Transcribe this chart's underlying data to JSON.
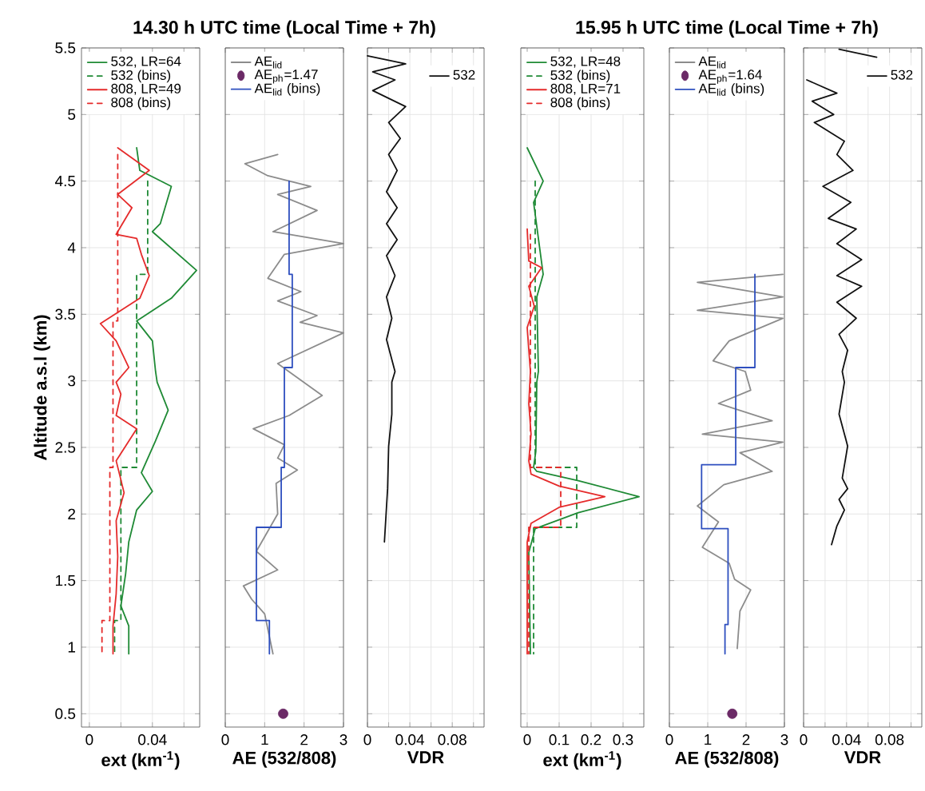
{
  "chart_data": [
    {
      "type": "line",
      "xlabel": "ext (km$^{-1}$)",
      "ylabel": "Altitude a.s.l (km)",
      "xlim": [
        -0.005,
        0.07
      ],
      "xticks": [
        0,
        {
          "value": 0.02,
          "label": null
        },
        0.04,
        {
          "value": 0.06,
          "label": null
        }
      ],
      "ylim": [
        0.4,
        5.5
      ],
      "yticks": [
        0.5,
        1,
        1.5,
        2,
        2.5,
        3,
        3.5,
        4,
        4.5,
        5,
        5.5
      ],
      "grid": true,
      "legend": "top left",
      "series": [
        {
          "name": "532, LR=64",
          "color": "#1f8a35",
          "line_style": "solid",
          "x": [
            0.03,
            0.032,
            0.052,
            0.045,
            0.04,
            0.068,
            0.052,
            0.03,
            0.04,
            0.042,
            0.043,
            0.05,
            0.042,
            0.033,
            0.04,
            0.03,
            0.025,
            0.023,
            0.02,
            0.025,
            0.025
          ],
          "values": [
            4.75,
            4.58,
            4.46,
            4.18,
            4.12,
            3.83,
            3.62,
            3.45,
            3.3,
            3.07,
            2.99,
            2.78,
            2.55,
            2.31,
            2.17,
            2.03,
            1.79,
            1.55,
            1.31,
            1.16,
            0.95
          ]
        },
        {
          "name": "532 (bins)",
          "color": "#1f8a35",
          "line_style": "dashed",
          "x": [
            0.037,
            0.037,
            0.03,
            0.03,
            0.02,
            0.02,
            0.016,
            0.016
          ],
          "values": [
            4.5,
            3.8,
            3.8,
            2.35,
            2.35,
            1.2,
            1.2,
            0.95
          ]
        },
        {
          "name": "808, LR=49",
          "color": "#e52b2b",
          "line_style": "solid",
          "x": [
            0.018,
            0.038,
            0.018,
            0.027,
            0.017,
            0.03,
            0.033,
            0.038,
            0.032,
            0.007,
            0.017,
            0.025,
            0.017,
            0.02,
            0.017,
            0.03,
            0.017,
            0.022,
            0.017,
            0.018,
            0.017,
            0.015,
            0.015
          ],
          "values": [
            4.75,
            4.58,
            4.4,
            4.3,
            4.1,
            4.07,
            3.95,
            3.79,
            3.62,
            3.43,
            3.3,
            3.1,
            2.99,
            2.9,
            2.74,
            2.64,
            2.4,
            2.16,
            1.95,
            1.68,
            1.4,
            1.16,
            0.95
          ]
        },
        {
          "name": "808 (bins)",
          "color": "#e52b2b",
          "line_style": "dashed",
          "x": [
            0.018,
            0.018,
            0.015,
            0.015,
            0.013,
            0.013,
            0.008,
            0.008
          ],
          "values": [
            4.7,
            3.45,
            3.45,
            2.35,
            2.35,
            1.2,
            1.2,
            0.95
          ]
        }
      ]
    },
    {
      "type": "line",
      "title": "14.30 h UTC time (Local Time + 7h)",
      "xlabel": "AE (532/808)",
      "xlim": [
        0,
        3
      ],
      "xticks": [
        0,
        1,
        2,
        3
      ],
      "ylim": [
        0.4,
        5.5
      ],
      "yticks": [
        0.5,
        1,
        1.5,
        2,
        2.5,
        3,
        3.5,
        4,
        4.5,
        5,
        5.5
      ],
      "tick_labels": "x",
      "grid": true,
      "legend": "top left",
      "series": [
        {
          "name": "AE$_{lid}$",
          "color": "#8c8c8c",
          "line_style": "solid",
          "x": [
            1.33,
            0.5,
            1.08,
            2.17,
            1.33,
            2.33,
            1.21,
            3.0,
            1.5,
            1.08,
            1.92,
            1.33,
            2.33,
            1.9,
            3.0,
            1.33,
            2.46,
            1.62,
            0.71,
            1.5,
            1.33,
            1.83,
            1.29,
            1.33,
            0.79,
            1.33,
            0.46,
            0.67,
            1.0,
            1.21
          ],
          "values": [
            4.7,
            4.63,
            4.54,
            4.46,
            4.4,
            4.28,
            4.12,
            4.03,
            3.95,
            3.77,
            3.67,
            3.6,
            3.49,
            3.44,
            3.36,
            3.13,
            2.89,
            2.74,
            2.64,
            2.52,
            2.42,
            2.33,
            2.23,
            2.0,
            1.72,
            1.58,
            1.46,
            1.36,
            1.25,
            0.95
          ]
        },
        {
          "name": "AE$_{ph}$=1.47",
          "type": "scatter",
          "marker": "circle",
          "color": "#6b2a66",
          "x": [
            1.47
          ],
          "values": [
            0.5
          ]
        },
        {
          "name": "AE$_{lid}$ (bins)",
          "color": "#2e4fbf",
          "line_style": "solid",
          "x": [
            1.62,
            1.62,
            1.7,
            1.7,
            1.5,
            1.5,
            1.42,
            1.42,
            0.79,
            0.79,
            1.12,
            1.12
          ],
          "values": [
            4.5,
            3.8,
            3.8,
            3.1,
            3.1,
            2.35,
            2.35,
            1.9,
            1.9,
            1.2,
            1.2,
            0.95
          ]
        }
      ]
    },
    {
      "type": "line",
      "xlabel": "VDR",
      "xlim": [
        0,
        0.11
      ],
      "xticks": [
        0,
        {
          "value": 0.02,
          "label": null
        },
        0.04,
        {
          "value": 0.06,
          "label": null
        },
        0.08,
        {
          "value": 0.1,
          "label": null
        }
      ],
      "ylim": [
        0.4,
        5.5
      ],
      "yticks": [
        0.5,
        1,
        1.5,
        2,
        2.5,
        3,
        3.5,
        4,
        4.5,
        5,
        5.5
      ],
      "tick_labels": "x",
      "grid": true,
      "legend": "top right",
      "series": [
        {
          "name": "532",
          "color": "#111111",
          "line_style": "solid",
          "x": [
            0.0,
            0.036,
            0.005,
            0.026,
            0.005,
            0.036,
            0.02,
            0.031,
            0.02,
            0.028,
            0.018,
            0.028,
            0.018,
            0.028,
            0.018,
            0.026,
            0.018,
            0.023,
            0.018,
            0.026,
            0.023,
            0.023,
            0.02,
            0.019,
            0.016
          ],
          "values": [
            5.44,
            5.38,
            5.32,
            5.26,
            5.18,
            5.06,
            4.94,
            4.82,
            4.7,
            4.58,
            4.42,
            4.3,
            4.18,
            4.06,
            3.94,
            3.79,
            3.63,
            3.47,
            3.31,
            3.07,
            2.99,
            2.75,
            2.51,
            2.19,
            1.79
          ]
        }
      ]
    },
    {
      "type": "line",
      "xlabel": "ext (km$^{-1}$)",
      "xlim": [
        -0.02,
        0.365
      ],
      "xticks": [
        0,
        0.1,
        0.2,
        0.3
      ],
      "ylim": [
        0.4,
        5.5
      ],
      "yticks": [
        0.5,
        1,
        1.5,
        2,
        2.5,
        3,
        3.5,
        4,
        4.5,
        5,
        5.5
      ],
      "tick_labels": "x",
      "grid": true,
      "legend": "top left",
      "series": [
        {
          "name": "532, LR=48",
          "color": "#1f8a35",
          "line_style": "solid",
          "x": [
            0.0,
            0.05,
            0.02,
            0.05,
            0.03,
            0.035,
            0.03,
            0.027,
            0.02,
            0.03,
            0.16,
            0.35,
            0.16,
            0.025,
            0.005,
            0.01
          ],
          "values": [
            4.75,
            4.5,
            4.34,
            3.8,
            3.63,
            3.07,
            2.99,
            2.47,
            2.35,
            2.32,
            2.25,
            2.13,
            2.01,
            1.89,
            1.71,
            0.95
          ]
        },
        {
          "name": "532 (bins)",
          "color": "#1f8a35",
          "line_style": "dashed",
          "x": [
            0.025,
            0.025,
            0.155,
            0.155,
            0.02,
            0.02
          ],
          "values": [
            4.5,
            2.35,
            2.35,
            1.9,
            1.9,
            0.95
          ]
        },
        {
          "name": "808, LR=71",
          "color": "#e52b2b",
          "line_style": "solid",
          "x": [
            0.0,
            0.005,
            0.045,
            0.005,
            0.022,
            0.0,
            0.01,
            0.005,
            0.012,
            0.005,
            0.012,
            0.1,
            0.243,
            0.1,
            0.012,
            0.0,
            0.0
          ],
          "values": [
            4.14,
            3.9,
            3.85,
            3.71,
            3.56,
            3.4,
            3.07,
            2.83,
            2.6,
            2.4,
            2.3,
            2.21,
            2.13,
            2.05,
            1.93,
            1.79,
            0.95
          ]
        },
        {
          "name": "808 (bins)",
          "color": "#e52b2b",
          "line_style": "dashed",
          "x": [
            0.01,
            0.01,
            0.105,
            0.105,
            0.005,
            0.005
          ],
          "values": [
            4.1,
            2.35,
            2.35,
            1.9,
            1.9,
            0.95
          ]
        }
      ]
    },
    {
      "type": "line",
      "title": "15.95 h UTC time (Local Time + 7h)",
      "xlabel": "AE (532/808)",
      "xlim": [
        0,
        3
      ],
      "xticks": [
        0,
        1,
        2,
        3
      ],
      "ylim": [
        0.4,
        5.5
      ],
      "yticks": [
        0.5,
        1,
        1.5,
        2,
        2.5,
        3,
        3.5,
        4,
        4.5,
        5,
        5.5
      ],
      "tick_labels": "x",
      "grid": true,
      "legend": "top left",
      "series": [
        {
          "name": "AE$_{lid}$",
          "color": "#8c8c8c",
          "line_style": "solid",
          "x": [
            2.96,
            0.73,
            2.96,
            0.73,
            2.96,
            1.56,
            1.14,
            1.98,
            2.12,
            1.28,
            2.68,
            0.86,
            2.96,
            1.84,
            2.68,
            1.42,
            0.73,
            1.28,
            0.86,
            1.56,
            1.7,
            2.12,
            1.84,
            1.77
          ],
          "values": [
            3.8,
            3.74,
            3.63,
            3.53,
            3.47,
            3.3,
            3.15,
            3.07,
            2.93,
            2.83,
            2.7,
            2.6,
            2.54,
            2.46,
            2.32,
            2.22,
            2.06,
            1.94,
            1.75,
            1.63,
            1.51,
            1.43,
            1.27,
            0.99
          ]
        },
        {
          "name": "AE$_{ph}$=1.64",
          "type": "scatter",
          "marker": "circle",
          "color": "#6b2a66",
          "x": [
            1.64
          ],
          "values": [
            0.5
          ]
        },
        {
          "name": "AE$_{lid}$ (bins)",
          "color": "#2e4fbf",
          "line_style": "solid",
          "x": [
            2.23,
            2.23,
            1.73,
            1.73,
            0.84,
            0.84,
            1.53,
            1.53,
            1.45,
            1.45
          ],
          "values": [
            3.8,
            3.1,
            3.1,
            2.37,
            2.37,
            1.89,
            1.89,
            1.17,
            1.17,
            0.95
          ]
        }
      ]
    },
    {
      "type": "line",
      "xlabel": "VDR",
      "xlim": [
        0,
        0.11
      ],
      "xticks": [
        0,
        {
          "value": 0.02,
          "label": null
        },
        0.04,
        {
          "value": 0.06,
          "label": null
        },
        0.08,
        {
          "value": 0.1,
          "label": null
        }
      ],
      "ylim": [
        0.4,
        5.5
      ],
      "yticks": [
        0.5,
        1,
        1.5,
        2,
        2.5,
        3,
        3.5,
        4,
        4.5,
        5,
        5.5
      ],
      "tick_labels": "x",
      "grid": true,
      "legend": "top right",
      "series": [
        {
          "name": "532",
          "color": "#111111",
          "line_style": "solid",
          "x": [
            0.033,
            0.068,
            null,
            0.003,
            0.031,
            0.008,
            0.028,
            0.01,
            0.038,
            0.031,
            0.046,
            0.018,
            0.044,
            0.023,
            0.049,
            0.031,
            0.054,
            0.031,
            0.054,
            0.031,
            0.049,
            0.033,
            0.041,
            0.036,
            0.038,
            0.033,
            0.041,
            0.036,
            0.041,
            0.033,
            0.038,
            0.031,
            0.026
          ],
          "values": [
            5.49,
            5.43,
            null,
            5.26,
            5.16,
            5.1,
            5.0,
            4.94,
            4.8,
            4.7,
            4.58,
            4.46,
            4.34,
            4.22,
            4.14,
            4.03,
            3.91,
            3.79,
            3.71,
            3.59,
            3.47,
            3.35,
            3.23,
            3.07,
            2.99,
            2.75,
            2.51,
            2.27,
            2.19,
            2.11,
            2.03,
            1.91,
            1.77
          ]
        }
      ]
    }
  ]
}
